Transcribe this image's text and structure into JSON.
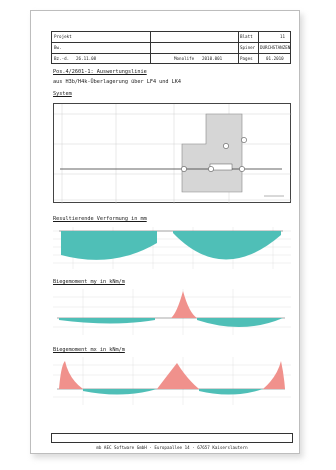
{
  "header": {
    "left_labels": [
      "Projekt",
      "Bw.",
      "Bz.-d."
    ],
    "date_left": "26.11.08",
    "center_label": "Monolife",
    "center_value": "2010.001",
    "right_labels": [
      "Blatt",
      "Spiner",
      "Pages"
    ],
    "right_values": [
      "11",
      "DURCHSTANZEN",
      "01.2010"
    ]
  },
  "position_title": "Pos.4/2601-1: Auswertungslinie",
  "position_subtitle": "aus H3b/H4k-Überlagerung über LF4 und LK4",
  "system_title": "System",
  "section1_title": "Resultierende Verformung in mm",
  "section2_title": "Biegemoment my in kNm/m",
  "section3_title": "Biegemoment mx in kNm/m",
  "footer_text": "mb AEC Software GmbH · Europaallee 14 · 67657 Kaiserslautern",
  "colors": {
    "teal": "#4fbfb7",
    "red": "#f0918c",
    "frame": "#444444"
  }
}
